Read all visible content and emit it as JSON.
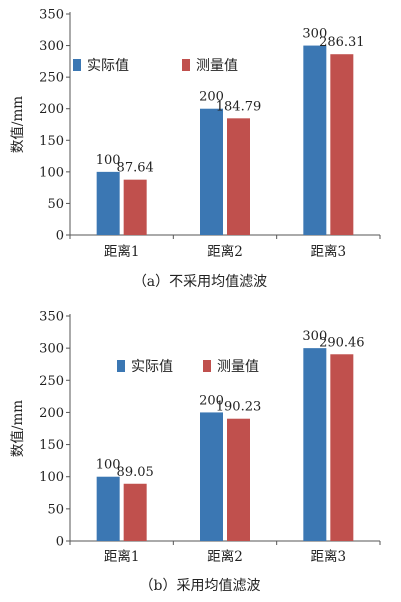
{
  "chart_data": [
    {
      "type": "bar",
      "caption": "（a）不采用均值滤波",
      "ylabel": "数值/mm",
      "ylim": [
        0,
        350
      ],
      "yticks": [
        0,
        50,
        100,
        150,
        200,
        250,
        300,
        350
      ],
      "categories": [
        "距离1",
        "距离2",
        "距离3"
      ],
      "series": [
        {
          "name": "实际值",
          "values": [
            100,
            200,
            300
          ],
          "labels": [
            "100",
            "200",
            "300"
          ],
          "color": "#3b77b3"
        },
        {
          "name": "测量值",
          "values": [
            87.64,
            184.79,
            286.31
          ],
          "labels": [
            "87.64",
            "184.79",
            "286.31"
          ],
          "color": "#c0504d"
        }
      ],
      "legend": "upper-left",
      "grid": false
    },
    {
      "type": "bar",
      "caption": "（b）采用均值滤波",
      "ylabel": "数值/mm",
      "ylim": [
        0,
        350
      ],
      "yticks": [
        0,
        50,
        100,
        150,
        200,
        250,
        300,
        350
      ],
      "categories": [
        "距离1",
        "距离2",
        "距离3"
      ],
      "series": [
        {
          "name": "实际值",
          "values": [
            100,
            200,
            300
          ],
          "labels": [
            "100",
            "200",
            "300"
          ],
          "color": "#3b77b3"
        },
        {
          "name": "测量值",
          "values": [
            89.05,
            190.23,
            290.46
          ],
          "labels": [
            "89.05",
            "190.23",
            "290.46"
          ],
          "color": "#c0504d"
        }
      ],
      "legend": "upper-center",
      "grid": false
    }
  ]
}
